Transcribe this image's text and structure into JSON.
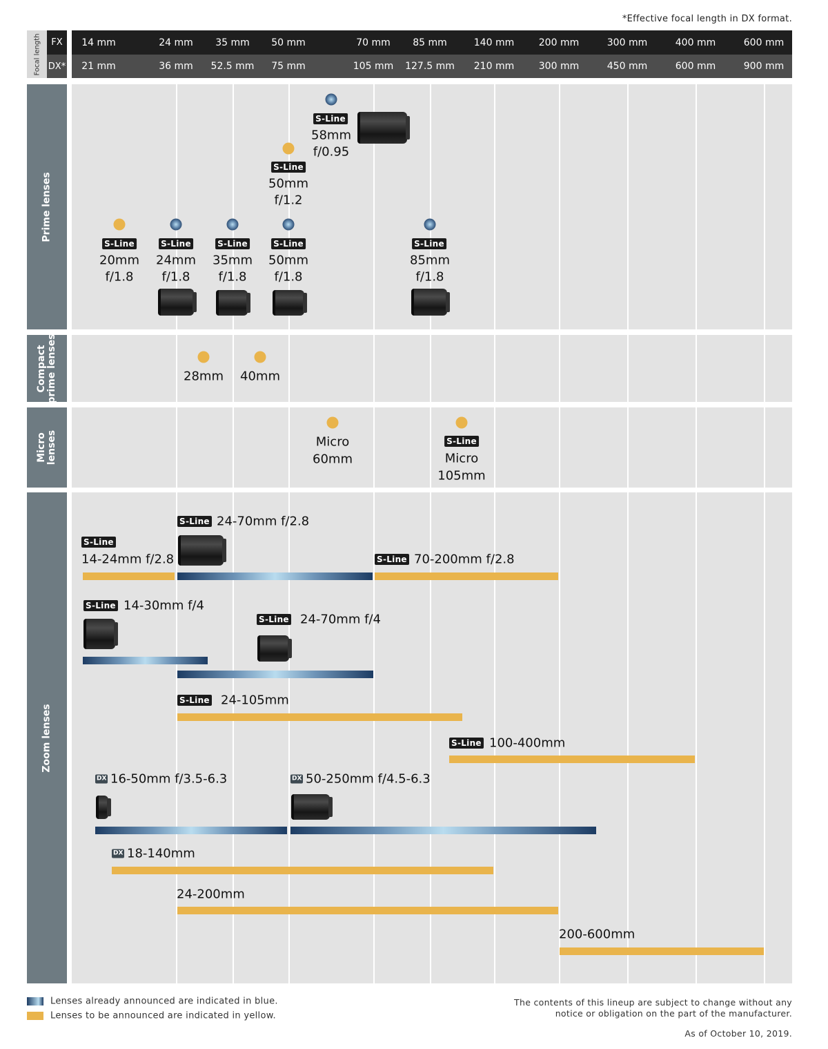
{
  "header": {
    "note": "*Effective focal length in DX format.",
    "focal_length_label": "Focal length",
    "fx_label": "FX",
    "dx_label": "DX*",
    "fx": [
      "14 mm",
      "24 mm",
      "35 mm",
      "50 mm",
      "70 mm",
      "85 mm",
      "140 mm",
      "200 mm",
      "300 mm",
      "400 mm",
      "600 mm"
    ],
    "dx": [
      "21 mm",
      "36 mm",
      "52.5 mm",
      "75 mm",
      "105 mm",
      "127.5 mm",
      "210 mm",
      "300 mm",
      "450 mm",
      "600 mm",
      "900 mm"
    ]
  },
  "badges": {
    "sline": "S-Line",
    "dx": "DX"
  },
  "sections": {
    "prime": "Prime lenses",
    "compact_1": "Compact",
    "compact_2": "prime lenses",
    "micro_1": "Micro",
    "micro_2": "lenses",
    "zoom": "Zoom lenses"
  },
  "prime": [
    {
      "focal": "58mm",
      "aperture": "f/0.95",
      "sline": true,
      "status": "announced"
    },
    {
      "focal": "50mm",
      "aperture": "f/1.2",
      "sline": true,
      "status": "upcoming"
    },
    {
      "focal": "20mm",
      "aperture": "f/1.8",
      "sline": true,
      "status": "upcoming"
    },
    {
      "focal": "24mm",
      "aperture": "f/1.8",
      "sline": true,
      "status": "announced"
    },
    {
      "focal": "35mm",
      "aperture": "f/1.8",
      "sline": true,
      "status": "announced"
    },
    {
      "focal": "50mm",
      "aperture": "f/1.8",
      "sline": true,
      "status": "announced"
    },
    {
      "focal": "85mm",
      "aperture": "f/1.8",
      "sline": true,
      "status": "announced"
    }
  ],
  "compact": [
    {
      "focal": "28mm",
      "status": "upcoming"
    },
    {
      "focal": "40mm",
      "status": "upcoming"
    }
  ],
  "micro": [
    {
      "type": "Micro",
      "focal": "60mm",
      "sline": false,
      "status": "upcoming"
    },
    {
      "type": "Micro",
      "focal": "105mm",
      "sline": true,
      "status": "upcoming"
    }
  ],
  "zoom": [
    {
      "label": "14-24mm f/2.8",
      "range_mm": [
        14,
        24
      ],
      "sline": true,
      "status": "upcoming"
    },
    {
      "label": "24-70mm f/2.8",
      "range_mm": [
        24,
        70
      ],
      "sline": true,
      "status": "announced"
    },
    {
      "label": "70-200mm f/2.8",
      "range_mm": [
        70,
        200
      ],
      "sline": true,
      "status": "upcoming"
    },
    {
      "label": "14-30mm f/4",
      "range_mm": [
        14,
        30
      ],
      "sline": true,
      "status": "announced"
    },
    {
      "label": "24-70mm f/4",
      "range_mm": [
        24,
        70
      ],
      "sline": true,
      "status": "announced"
    },
    {
      "label": "24-105mm",
      "range_mm": [
        24,
        105
      ],
      "sline": true,
      "status": "upcoming"
    },
    {
      "label": "100-400mm",
      "range_mm": [
        100,
        400
      ],
      "sline": true,
      "status": "upcoming"
    },
    {
      "label": "16-50mm f/3.5-6.3",
      "range_mm": [
        16,
        50
      ],
      "dx": true,
      "status": "announced"
    },
    {
      "label": "50-250mm f/4.5-6.3",
      "range_mm": [
        50,
        250
      ],
      "dx": true,
      "status": "announced"
    },
    {
      "label": "18-140mm",
      "range_mm": [
        18,
        140
      ],
      "dx": true,
      "status": "upcoming"
    },
    {
      "label": "24-200mm",
      "range_mm": [
        24,
        200
      ],
      "status": "upcoming"
    },
    {
      "label": "200-600mm",
      "range_mm": [
        200,
        600
      ],
      "status": "upcoming"
    }
  ],
  "legend": {
    "announced": "Lenses already announced are indicated in blue.",
    "upcoming": "Lenses to be announced are indicated in yellow."
  },
  "disclaimer_1": "The contents of this lineup are subject to change without any",
  "disclaimer_2": "notice or obligation on the part of the manufacturer.",
  "date": "As of October 10, 2019.",
  "colors": {
    "announced": "#1d3c63",
    "upcoming": "#e9b44c",
    "section": "#6e7b82",
    "grid": "#e3e3e3"
  }
}
